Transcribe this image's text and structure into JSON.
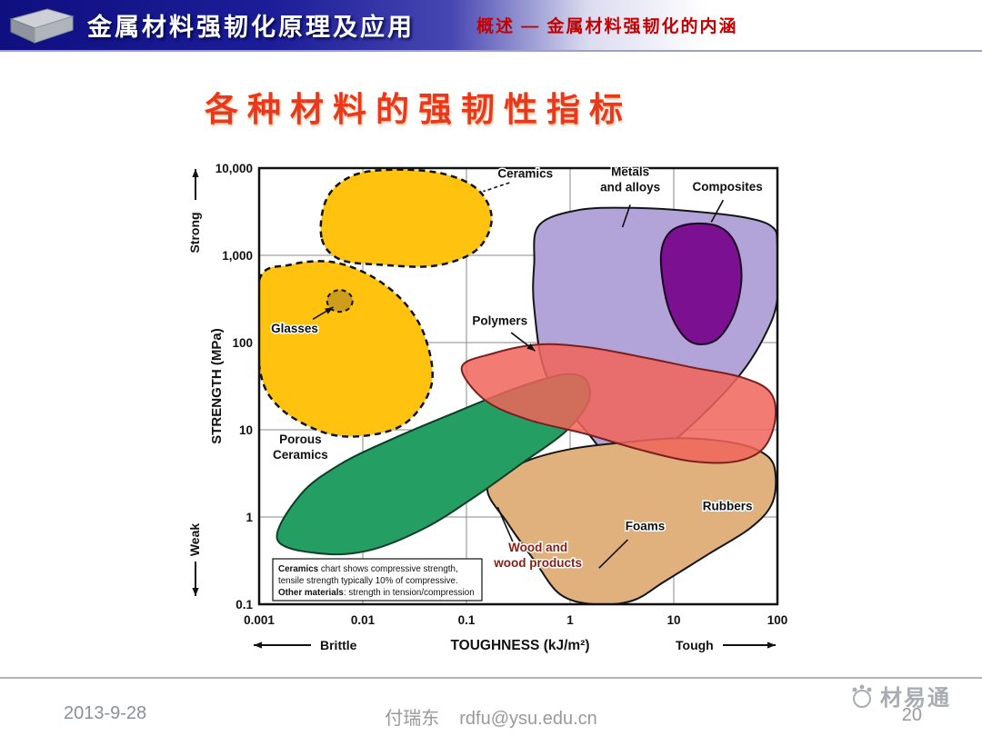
{
  "header": {
    "title": "金属材料强韧化原理及应用",
    "subtitle": "概述 — 金属材料强韧化的内涵"
  },
  "slide": {
    "title": "各种材料的强韧性指标"
  },
  "footer": {
    "date": "2013-9-28",
    "author": "付瑞东",
    "email": "rdfu@ysu.edu.cn",
    "page_number": "20",
    "watermark": "材易通"
  },
  "chart_data": {
    "type": "area",
    "subtype": "ashby-material-property-map",
    "title": "各种材料的强韧性指标",
    "xlabel": "TOUGHNESS (kJ/m²)",
    "ylabel": "STRENGTH (MPa)",
    "x_scale": "log",
    "y_scale": "log",
    "xlim": [
      0.001,
      100
    ],
    "ylim": [
      0.1,
      10000
    ],
    "grid": true,
    "x_ticks": [
      {
        "v": 0.001,
        "label": "0.001"
      },
      {
        "v": 0.01,
        "label": "0.01"
      },
      {
        "v": 0.1,
        "label": "0.1"
      },
      {
        "v": 1,
        "label": "1"
      },
      {
        "v": 10,
        "label": "10"
      },
      {
        "v": 100,
        "label": "100"
      }
    ],
    "y_ticks": [
      {
        "v": 10000,
        "label": "10,000"
      },
      {
        "v": 1000,
        "label": "1,000"
      },
      {
        "v": 100,
        "label": "100"
      },
      {
        "v": 10,
        "label": "10"
      },
      {
        "v": 1,
        "label": "1"
      },
      {
        "v": 0.1,
        "label": "0.1"
      }
    ],
    "axis_annotations": {
      "y_top": "Strong",
      "y_bottom": "Weak",
      "x_left": "Brittle",
      "x_right": "Tough"
    },
    "note_lines": [
      {
        "bold": "Ceramics",
        "rest": " chart shows compressive strength,"
      },
      {
        "bold": "",
        "rest": "tensile strength typically 10% of compressive."
      },
      {
        "bold": "Other materials",
        "rest": ": strength in tension/compression"
      }
    ],
    "regions": [
      {
        "name": "Metals and alloys",
        "slug": "metals-and-alloys",
        "fill": "#b2a4d8",
        "stroke": "#151515",
        "stroke_width": 2,
        "opacity": 1,
        "points": [
          [
            0.5,
            2200
          ],
          [
            1.2,
            3300
          ],
          [
            4,
            3500
          ],
          [
            15,
            3200
          ],
          [
            50,
            2700
          ],
          [
            90,
            2100
          ],
          [
            100,
            1300
          ],
          [
            100,
            320
          ],
          [
            78,
            130
          ],
          [
            45,
            45
          ],
          [
            18,
            14
          ],
          [
            7,
            5.5
          ],
          [
            3,
            4
          ],
          [
            1.5,
            9
          ],
          [
            0.6,
            40
          ],
          [
            0.45,
            250
          ],
          [
            0.45,
            800
          ]
        ],
        "label": {
          "lines": [
            "Metals",
            "and alloys"
          ],
          "x": 3.8,
          "y": 8200,
          "color": "#111111"
        },
        "leader": {
          "from": [
            3.8,
            3800
          ],
          "to": [
            3.2,
            2100
          ]
        }
      },
      {
        "name": "Rubbers / Foams",
        "slug": "rubbers-foams",
        "fill": "#e0b17c",
        "stroke": "#151515",
        "stroke_width": 2,
        "opacity": 1,
        "points": [
          [
            0.16,
            2.2
          ],
          [
            0.35,
            4.2
          ],
          [
            1,
            6
          ],
          [
            3.5,
            7.2
          ],
          [
            12,
            8
          ],
          [
            40,
            7
          ],
          [
            80,
            5
          ],
          [
            96,
            3
          ],
          [
            88,
            1.4
          ],
          [
            55,
            0.75
          ],
          [
            22,
            0.38
          ],
          [
            8,
            0.18
          ],
          [
            4,
            0.11
          ],
          [
            1.7,
            0.1
          ],
          [
            0.8,
            0.13
          ],
          [
            0.45,
            0.32
          ],
          [
            0.25,
            0.85
          ]
        ],
        "label": {
          "lines": [
            "Rubbers"
          ],
          "x": 33,
          "y": 1.2,
          "color": "#111111"
        },
        "label2": {
          "lines": [
            "Foams"
          ],
          "x": 5.3,
          "y": 0.71,
          "color": "#111111"
        },
        "leader": {
          "from": [
            3.6,
            0.55
          ],
          "to": [
            1.9,
            0.26
          ]
        }
      },
      {
        "name": "Wood and wood products",
        "slug": "wood",
        "fill": "#249e62",
        "stroke": "#0d3d26",
        "stroke_width": 2,
        "opacity": 1,
        "points": [
          [
            0.0015,
            0.55
          ],
          [
            0.0025,
            1.8
          ],
          [
            0.006,
            4
          ],
          [
            0.02,
            8
          ],
          [
            0.08,
            16
          ],
          [
            0.3,
            30
          ],
          [
            0.85,
            43
          ],
          [
            1.4,
            38
          ],
          [
            1.5,
            21
          ],
          [
            0.9,
            9.5
          ],
          [
            0.35,
            4.2
          ],
          [
            0.12,
            1.7
          ],
          [
            0.04,
            0.75
          ],
          [
            0.012,
            0.42
          ],
          [
            0.004,
            0.38
          ]
        ],
        "label": {
          "lines": [
            "Wood and",
            "wood products"
          ],
          "x": 0.49,
          "y": 0.4,
          "color": "#8b1d12"
        },
        "leader": {
          "from": [
            0.28,
            0.52
          ],
          "to": [
            0.2,
            1.3
          ]
        }
      },
      {
        "name": "Polymers",
        "slug": "polymers",
        "fill": "#f0655a",
        "stroke": "#7a1f1f",
        "stroke_width": 2,
        "opacity": 0.85,
        "points": [
          [
            0.09,
            52
          ],
          [
            0.18,
            75
          ],
          [
            0.5,
            95
          ],
          [
            1.5,
            88
          ],
          [
            5,
            68
          ],
          [
            15,
            52
          ],
          [
            45,
            40
          ],
          [
            85,
            27
          ],
          [
            95,
            13
          ],
          [
            72,
            6
          ],
          [
            38,
            4.3
          ],
          [
            14,
            4.4
          ],
          [
            4.5,
            6
          ],
          [
            1.4,
            9
          ],
          [
            0.4,
            13
          ],
          [
            0.15,
            22
          ]
        ],
        "label": {
          "lines": [
            "Polymers"
          ],
          "x": 0.21,
          "y": 160,
          "color": "#111111"
        },
        "leader": {
          "from": [
            0.27,
            130
          ],
          "to": [
            0.46,
            80
          ],
          "arrow": true
        }
      },
      {
        "name": "Composites",
        "slug": "composites",
        "fill": "#7b1090",
        "stroke": "#1a0520",
        "stroke_width": 2,
        "opacity": 1,
        "points": [
          [
            7.5,
            900
          ],
          [
            9,
            1800
          ],
          [
            15,
            2300
          ],
          [
            28,
            2100
          ],
          [
            40,
            1300
          ],
          [
            45,
            550
          ],
          [
            38,
            210
          ],
          [
            25,
            105
          ],
          [
            14,
            105
          ],
          [
            9,
            240
          ]
        ],
        "label": {
          "lines": [
            "Composites"
          ],
          "x": 33,
          "y": 5500,
          "color": "#111111"
        },
        "leader": {
          "from": [
            30,
            4300
          ],
          "to": [
            23,
            2400
          ]
        }
      },
      {
        "name": "Ceramics",
        "slug": "ceramics",
        "fill": "#ffc20e",
        "stroke": "#111111",
        "stroke_width": 2.5,
        "dash": "7,5",
        "opacity": 1,
        "points": [
          [
            0.004,
            1600
          ],
          [
            0.0045,
            4500
          ],
          [
            0.008,
            8200
          ],
          [
            0.02,
            9600
          ],
          [
            0.06,
            8600
          ],
          [
            0.13,
            5600
          ],
          [
            0.175,
            2600
          ],
          [
            0.125,
            1150
          ],
          [
            0.05,
            760
          ],
          [
            0.015,
            780
          ],
          [
            0.006,
            900
          ]
        ],
        "label": {
          "lines": [
            "Ceramics"
          ],
          "x": 0.37,
          "y": 7800,
          "color": "#111111"
        },
        "leader": {
          "from": [
            0.26,
            6800
          ],
          "to": [
            0.145,
            5400
          ],
          "dash": "4,3"
        }
      },
      {
        "name": "Porous Ceramics",
        "slug": "porous-ceramics",
        "fill": "#ffc20e",
        "stroke": "#111111",
        "stroke_width": 2.5,
        "dash": "7,5",
        "opacity": 1,
        "points": [
          [
            0.001,
            520
          ],
          [
            0.002,
            780
          ],
          [
            0.005,
            840
          ],
          [
            0.012,
            580
          ],
          [
            0.025,
            290
          ],
          [
            0.04,
            115
          ],
          [
            0.046,
            33
          ],
          [
            0.026,
            12
          ],
          [
            0.01,
            8.5
          ],
          [
            0.004,
            9.5
          ],
          [
            0.0015,
            19
          ],
          [
            0.001,
            55
          ]
        ],
        "label": {
          "lines": [
            "Porous",
            "Ceramics"
          ],
          "x": 0.0025,
          "y": 7,
          "color": "#111111"
        }
      },
      {
        "name": "Glasses",
        "slug": "glasses",
        "shape": "ellipse",
        "center": [
          0.006,
          300
        ],
        "rx": 14,
        "ry": 12,
        "fill": "#cf9d1c",
        "stroke": "#111111",
        "stroke_width": 2,
        "dash": "5,4",
        "opacity": 1,
        "label": {
          "lines": [
            "Glasses"
          ],
          "x": 0.0022,
          "y": 130,
          "color": "#111111"
        },
        "leader": {
          "from": [
            0.0033,
            185
          ],
          "to": [
            0.0052,
            255
          ],
          "arrow": true
        }
      }
    ]
  }
}
